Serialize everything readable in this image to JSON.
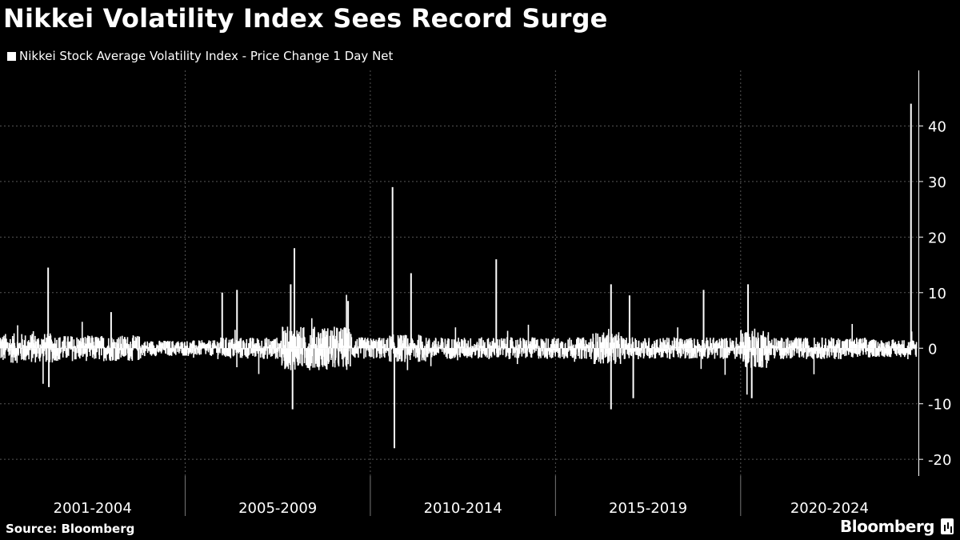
{
  "title": "Nikkei Volatility Index Sees Record Surge",
  "source": "Source: Bloomberg",
  "brand": "Bloomberg",
  "icons": {
    "brand_logo": "bloomberg-terminal-icon"
  },
  "colors": {
    "background": "#000000",
    "series": "#ffffff",
    "grid": "#555555"
  },
  "chart_data": {
    "type": "bar",
    "title": "Nikkei Volatility Index Sees Record Surge",
    "legend": {
      "position": "top-left",
      "entries": [
        "Nikkei Stock Average Volatility Index - Price Change 1 Day Net"
      ]
    },
    "series": [
      {
        "name": "Nikkei Stock Average Volatility Index - Price Change 1 Day Net"
      }
    ],
    "x_categories": [
      "2001-2004",
      "2005-2009",
      "2010-2014",
      "2015-2019",
      "2020-2024"
    ],
    "x_range": [
      2000.0,
      2024.8
    ],
    "ylim": [
      -23,
      50
    ],
    "y_ticks": [
      -20,
      -10,
      0,
      10,
      20,
      30,
      40
    ],
    "y_axis_side": "right",
    "grid": true,
    "notable_points": [
      {
        "x": 2001.3,
        "y": 14.5
      },
      {
        "x": 2001.32,
        "y": -7
      },
      {
        "x": 2003.0,
        "y": 6.5
      },
      {
        "x": 2007.9,
        "y": -11
      },
      {
        "x": 2007.95,
        "y": 18
      },
      {
        "x": 2007.85,
        "y": 11.5
      },
      {
        "x": 2006.4,
        "y": 10.5
      },
      {
        "x": 2006.0,
        "y": 10
      },
      {
        "x": 2009.4,
        "y": 8.5
      },
      {
        "x": 2010.6,
        "y": 29
      },
      {
        "x": 2010.65,
        "y": -18
      },
      {
        "x": 2011.1,
        "y": 13.5
      },
      {
        "x": 2013.4,
        "y": 16
      },
      {
        "x": 2016.5,
        "y": 11.5
      },
      {
        "x": 2016.5,
        "y": -11
      },
      {
        "x": 2017.0,
        "y": 9.5
      },
      {
        "x": 2017.1,
        "y": -9
      },
      {
        "x": 2019.0,
        "y": 10.5
      },
      {
        "x": 2020.2,
        "y": 11.5
      },
      {
        "x": 2020.3,
        "y": -9
      },
      {
        "x": 2024.6,
        "y": 44
      }
    ],
    "noise_band": [
      -5,
      5
    ]
  }
}
